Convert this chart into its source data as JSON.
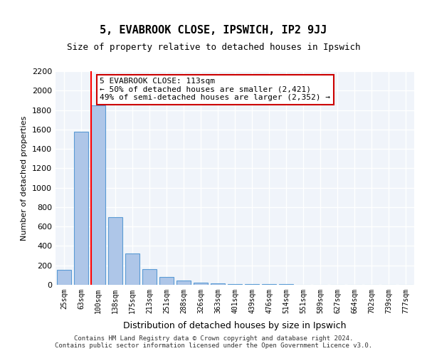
{
  "title": "5, EVABROOK CLOSE, IPSWICH, IP2 9JJ",
  "subtitle": "Size of property relative to detached houses in Ipswich",
  "xlabel": "Distribution of detached houses by size in Ipswich",
  "ylabel": "Number of detached properties",
  "categories": [
    "25sqm",
    "63sqm",
    "100sqm",
    "138sqm",
    "175sqm",
    "213sqm",
    "251sqm",
    "288sqm",
    "326sqm",
    "363sqm",
    "401sqm",
    "439sqm",
    "476sqm",
    "514sqm",
    "551sqm",
    "589sqm",
    "627sqm",
    "664sqm",
    "702sqm",
    "739sqm",
    "777sqm"
  ],
  "values": [
    155,
    1575,
    1850,
    700,
    320,
    160,
    80,
    45,
    25,
    15,
    10,
    8,
    5,
    4,
    3,
    2,
    2,
    1,
    1,
    1,
    1
  ],
  "bar_color": "#aec6e8",
  "bar_edge_color": "#5b9bd5",
  "property_line_x": 2,
  "property_sqm": 113,
  "annotation_text": "5 EVABROOK CLOSE: 113sqm\n← 50% of detached houses are smaller (2,421)\n49% of semi-detached houses are larger (2,352) →",
  "annotation_box_color": "#ffffff",
  "annotation_box_edge": "#cc0000",
  "ylim": [
    0,
    2200
  ],
  "yticks": [
    0,
    200,
    400,
    600,
    800,
    1000,
    1200,
    1400,
    1600,
    1800,
    2000,
    2200
  ],
  "footer1": "Contains HM Land Registry data © Crown copyright and database right 2024.",
  "footer2": "Contains public sector information licensed under the Open Government Licence v3.0.",
  "bg_color": "#f0f4fa",
  "grid_color": "#ffffff"
}
